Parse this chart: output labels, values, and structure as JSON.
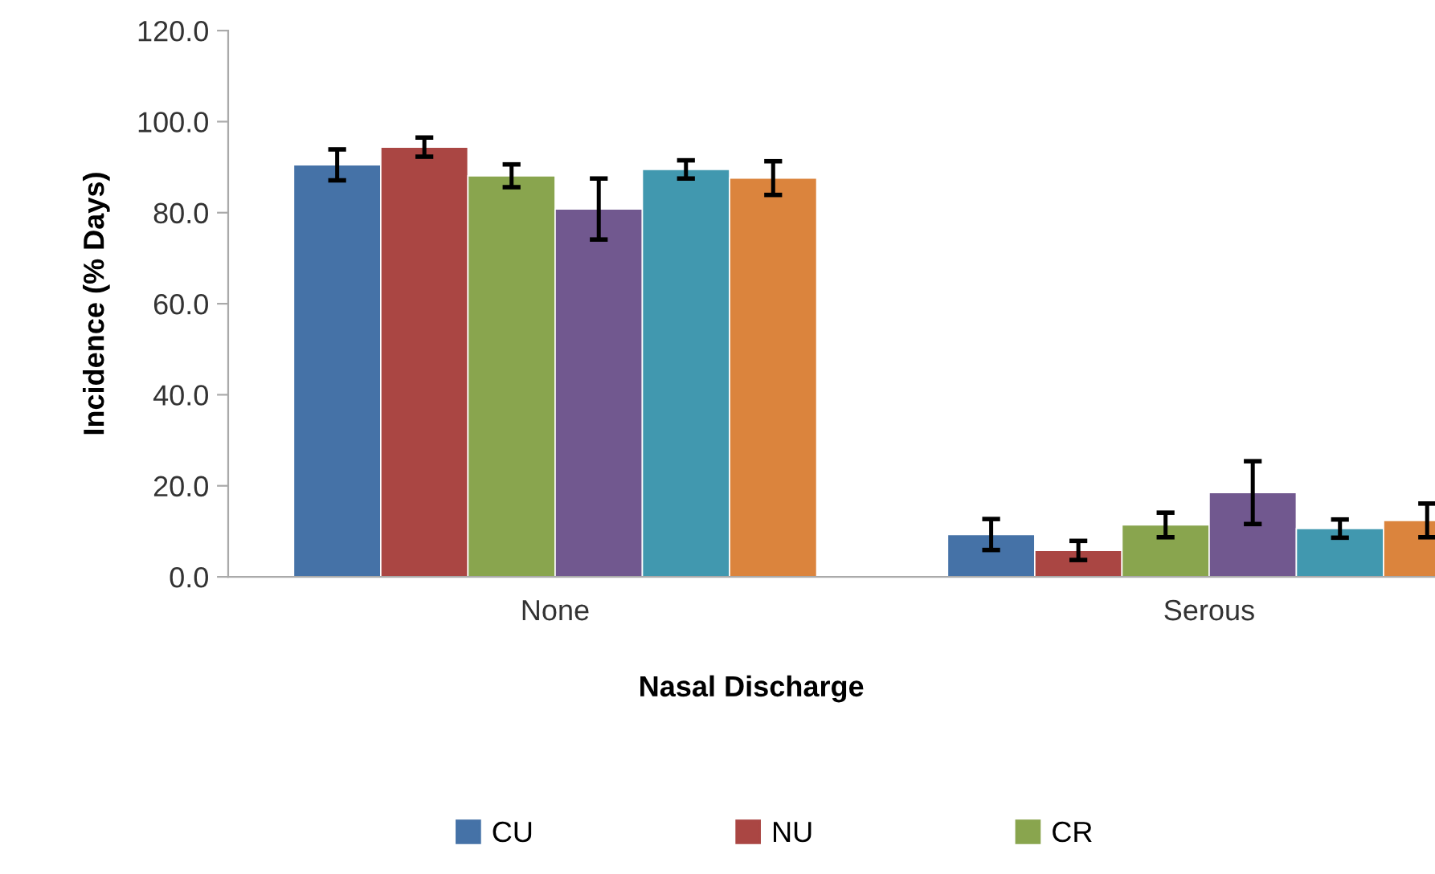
{
  "chart_data": {
    "type": "bar",
    "xlabel": "Nasal Discharge",
    "ylabel": "Incidence (% Days)",
    "categories": [
      "None",
      "Serous"
    ],
    "series": [
      {
        "name": "CU",
        "color": "#4572a7",
        "values": [
          90.5,
          9.3
        ],
        "errors": [
          3.4,
          3.4
        ]
      },
      {
        "name": "NU",
        "color": "#aa4643",
        "values": [
          94.4,
          5.8
        ],
        "errors": [
          2.1,
          2.1
        ]
      },
      {
        "name": "CR",
        "color": "#89a54e",
        "values": [
          88.1,
          11.4
        ],
        "errors": [
          2.5,
          2.7
        ]
      },
      {
        "color": "#71588f",
        "values": [
          80.8,
          18.5
        ],
        "errors": [
          6.7,
          6.9
        ]
      },
      {
        "color": "#4198af",
        "values": [
          89.5,
          10.6
        ],
        "errors": [
          2.0,
          2.0
        ]
      },
      {
        "color": "#db843d",
        "values": [
          87.6,
          12.4
        ],
        "errors": [
          3.7,
          3.7
        ]
      }
    ],
    "ylim": [
      0,
      120
    ],
    "yticks": [
      {
        "value": 0,
        "label": "0.0"
      },
      {
        "value": 20,
        "label": "20.0"
      },
      {
        "value": 40,
        "label": "40.0"
      },
      {
        "value": 60,
        "label": "60.0"
      },
      {
        "value": 80,
        "label": "80.0"
      },
      {
        "value": 100,
        "label": "100.0"
      },
      {
        "value": 120,
        "label": "120.0"
      }
    ],
    "grid": false,
    "legend": "bottom"
  }
}
